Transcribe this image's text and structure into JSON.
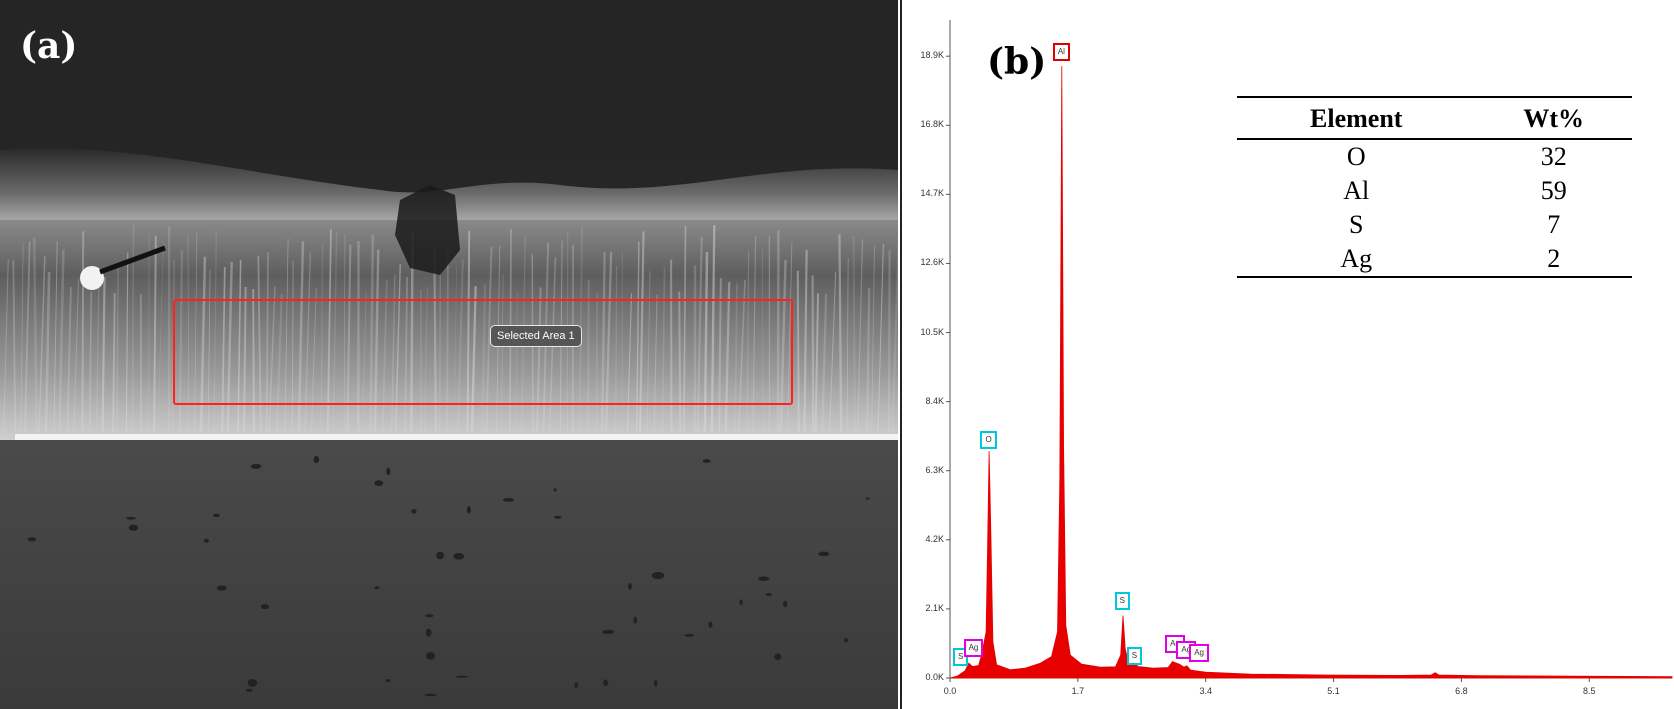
{
  "panel_a": {
    "label": "(a)",
    "selection_tag": "Selected Area 1"
  },
  "panel_b": {
    "label": "(b)",
    "table": {
      "headers": [
        "Element",
        "Wt%"
      ],
      "rows": [
        [
          "O",
          "32"
        ],
        [
          "Al",
          "59"
        ],
        [
          "S",
          "7"
        ],
        [
          "Ag",
          "2"
        ]
      ]
    }
  },
  "chart_data": {
    "type": "area",
    "title": "",
    "xlabel": "",
    "ylabel": "",
    "xlim": [
      0,
      9.6
    ],
    "ylim": [
      0,
      20000
    ],
    "x_ticks": [
      "0.0",
      "1.7",
      "3.4",
      "5.1",
      "6.8",
      "8.5"
    ],
    "x_tick_values": [
      0,
      1.7,
      3.4,
      5.1,
      6.8,
      8.5
    ],
    "y_ticks": [
      "0.0K",
      "2.1K",
      "4.2K",
      "6.3K",
      "8.4K",
      "10.5K",
      "12.6K",
      "14.7K",
      "16.8K",
      "18.9K"
    ],
    "y_tick_values": [
      0,
      2100,
      4200,
      6300,
      8400,
      10500,
      12600,
      14700,
      16800,
      18900
    ],
    "fill_color": "#e60000",
    "series": [
      {
        "points": [
          [
            0.0,
            0
          ],
          [
            0.1,
            60
          ],
          [
            0.2,
            220
          ],
          [
            0.25,
            450
          ],
          [
            0.3,
            350
          ],
          [
            0.38,
            380
          ],
          [
            0.42,
            700
          ],
          [
            0.48,
            1400
          ],
          [
            0.5,
            4000
          ],
          [
            0.52,
            6900
          ],
          [
            0.54,
            4800
          ],
          [
            0.57,
            1100
          ],
          [
            0.62,
            400
          ],
          [
            0.8,
            250
          ],
          [
            1.0,
            300
          ],
          [
            1.2,
            450
          ],
          [
            1.35,
            650
          ],
          [
            1.43,
            1400
          ],
          [
            1.46,
            6000
          ],
          [
            1.487,
            18600
          ],
          [
            1.51,
            7000
          ],
          [
            1.54,
            1600
          ],
          [
            1.6,
            700
          ],
          [
            1.75,
            420
          ],
          [
            2.0,
            330
          ],
          [
            2.2,
            340
          ],
          [
            2.27,
            700
          ],
          [
            2.3,
            1900
          ],
          [
            2.33,
            900
          ],
          [
            2.38,
            380
          ],
          [
            2.47,
            430
          ],
          [
            2.5,
            350
          ],
          [
            2.7,
            300
          ],
          [
            2.9,
            320
          ],
          [
            2.96,
            500
          ],
          [
            2.98,
            480
          ],
          [
            3.05,
            420
          ],
          [
            3.11,
            330
          ],
          [
            3.15,
            370
          ],
          [
            3.2,
            240
          ],
          [
            3.4,
            180
          ],
          [
            4.0,
            120
          ],
          [
            5.0,
            90
          ],
          [
            6.0,
            80
          ],
          [
            6.4,
            90
          ],
          [
            6.45,
            160
          ],
          [
            6.5,
            90
          ],
          [
            7.0,
            70
          ],
          [
            8.0,
            60
          ],
          [
            9.0,
            50
          ],
          [
            9.6,
            40
          ]
        ]
      }
    ],
    "peak_labels": [
      {
        "element": "Al",
        "x": 1.487,
        "y": 19000,
        "color": "#e00000"
      },
      {
        "element": "O",
        "x": 0.525,
        "y": 7200,
        "color": "#00c8d8"
      },
      {
        "element": "S",
        "x": 2.308,
        "y": 2300,
        "color": "#00c8d8"
      },
      {
        "element": "S",
        "x": 2.47,
        "y": 650,
        "color": "#00c8d8"
      },
      {
        "element": "S",
        "x": 0.16,
        "y": 600,
        "color": "#00c8d8"
      },
      {
        "element": "Ag",
        "x": 0.3,
        "y": 870,
        "color": "#e000e0"
      },
      {
        "element": "Ag",
        "x": 2.98,
        "y": 1000,
        "color": "#e000e0"
      },
      {
        "element": "Ag",
        "x": 3.13,
        "y": 820,
        "color": "#e000e0"
      },
      {
        "element": "Ag",
        "x": 3.3,
        "y": 720,
        "color": "#e000e0"
      }
    ]
  }
}
